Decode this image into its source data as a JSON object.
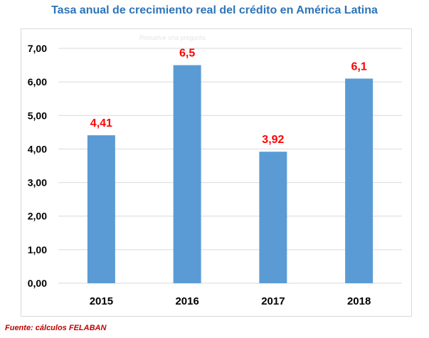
{
  "chart_data": {
    "type": "bar",
    "title": "Tasa anual de crecimiento real del crédito en América Latina",
    "categories": [
      "2015",
      "2016",
      "2017",
      "2018"
    ],
    "values": [
      4.41,
      6.5,
      3.92,
      6.1
    ],
    "data_labels": [
      "4,41",
      "6,5",
      "3,92",
      "6,1"
    ],
    "y_ticks": [
      0,
      1,
      2,
      3,
      4,
      5,
      6,
      7
    ],
    "y_tick_labels": [
      "0,00",
      "1,00",
      "2,00",
      "3,00",
      "4,00",
      "5,00",
      "6,00",
      "7,00"
    ],
    "ylim": [
      0,
      7
    ],
    "xlabel": "",
    "ylabel": "",
    "grid": true,
    "legend": "none",
    "watermark_text": "Resuelve una pregunta"
  },
  "source_note": "Fuente: cálculos FELABAN",
  "colors": {
    "bar": "#5b9bd5",
    "data_label": "#ff0000",
    "title": "#2e75b6",
    "gridline": "#d9d9d9",
    "source": "#c00000"
  }
}
